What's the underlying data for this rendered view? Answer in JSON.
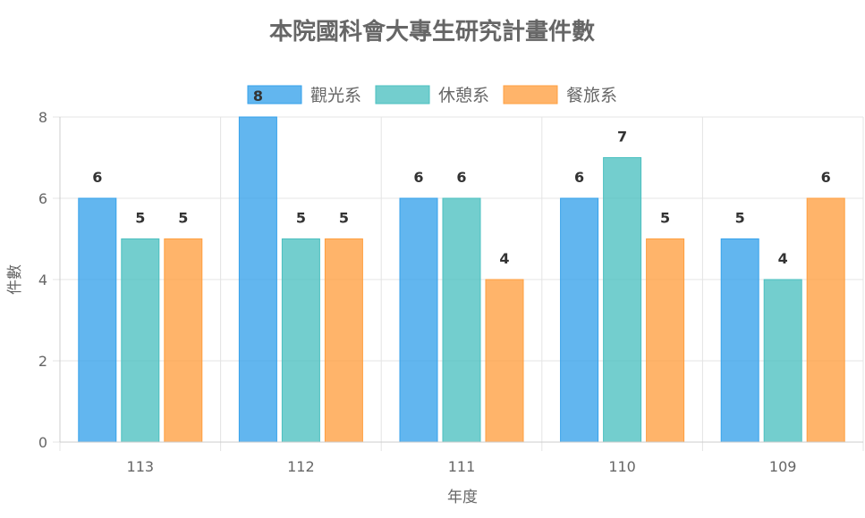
{
  "chart_data": {
    "type": "bar",
    "title": "本院國科會大專生研究計畫件數",
    "xlabel": "年度",
    "ylabel": "件數",
    "categories": [
      "113",
      "112",
      "111",
      "110",
      "109"
    ],
    "series": [
      {
        "name": "觀光系",
        "values": [
          6,
          8,
          6,
          6,
          5
        ],
        "color": "#36A2EB"
      },
      {
        "name": "休憩系",
        "values": [
          5,
          5,
          6,
          7,
          4
        ],
        "color": "#4BC0C0"
      },
      {
        "name": "餐旅系",
        "values": [
          5,
          5,
          4,
          5,
          6
        ],
        "color": "#FF9F40"
      }
    ],
    "ylim": [
      0,
      8
    ],
    "yticks": [
      0,
      2,
      4,
      6,
      8
    ],
    "grid": true,
    "legend_position": "top",
    "data_labels": true
  }
}
